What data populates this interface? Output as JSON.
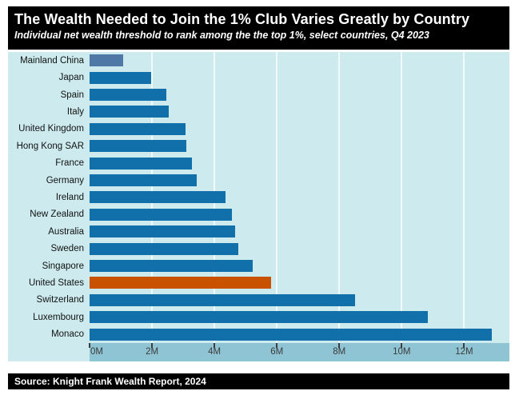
{
  "header": {
    "title": "The Wealth Needed to Join the 1% Club Varies Greatly by Country",
    "subtitle": "Individual net wealth threshold to rank among the the top 1%, select countries, Q4 2023"
  },
  "footer": {
    "source": "Source: Knight Frank Wealth Report, 2024"
  },
  "colors": {
    "header_bg": "#000000",
    "header_text": "#ffffff",
    "chart_bg": "#cdebee",
    "axis_strip_bg": "#8ec4d4",
    "gridline": "#f0fafa",
    "axis_text": "#3c3c3c",
    "label_text": "#111111",
    "bar_default": "#1170aa",
    "bar_muted_china": "#4e79a7",
    "bar_highlight_us": "#c85200"
  },
  "chart_data": {
    "type": "bar",
    "orientation": "horizontal",
    "title": "The Wealth Needed to Join the 1% Club Varies Greatly by Country",
    "subtitle": "Individual net wealth threshold to rank among the the top 1%, select countries, Q4 2023",
    "unit": "USD, millions",
    "xlabel": "",
    "ylabel": "",
    "categories": [
      "Mainland China",
      "Japan",
      "Spain",
      "Italy",
      "United Kingdom",
      "Hong Kong SAR",
      "France",
      "Germany",
      "Ireland",
      "New Zealand",
      "Australia",
      "Sweden",
      "Singapore",
      "United States",
      "Switzerland",
      "Luxembourg",
      "Monaco"
    ],
    "values": [
      1.07,
      1.96,
      2.45,
      2.53,
      3.07,
      3.1,
      3.27,
      3.43,
      4.35,
      4.57,
      4.67,
      4.76,
      5.23,
      5.81,
      8.51,
      10.83,
      12.88
    ],
    "bar_colors": [
      "#4e79a7",
      "#1170aa",
      "#1170aa",
      "#1170aa",
      "#1170aa",
      "#1170aa",
      "#1170aa",
      "#1170aa",
      "#1170aa",
      "#1170aa",
      "#1170aa",
      "#1170aa",
      "#1170aa",
      "#c85200",
      "#1170aa",
      "#1170aa",
      "#1170aa"
    ],
    "xlim": [
      0,
      13.45
    ],
    "x_ticks": [
      {
        "value": 0,
        "label": "0M"
      },
      {
        "value": 2,
        "label": "2M"
      },
      {
        "value": 4,
        "label": "4M"
      },
      {
        "value": 6,
        "label": "6M"
      },
      {
        "value": 8,
        "label": "8M"
      },
      {
        "value": 10,
        "label": "10M"
      },
      {
        "value": 12,
        "label": "12M"
      }
    ],
    "gridline_values": [
      2,
      4,
      6,
      8,
      10,
      12
    ],
    "grid": "vertical",
    "legend": "none",
    "source": "Source: Knight Frank Wealth Report, 2024"
  }
}
